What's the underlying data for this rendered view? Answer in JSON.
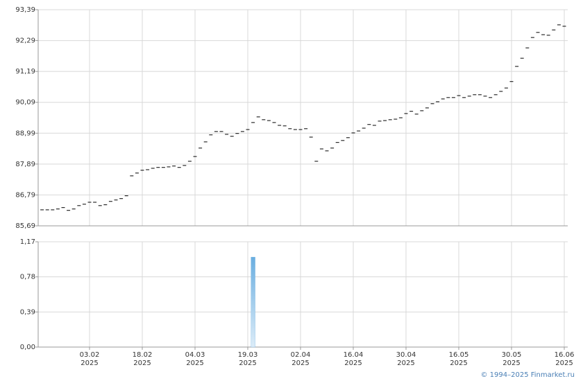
{
  "chart_data": [
    {
      "type": "dash",
      "color": "#000000",
      "grid": true,
      "ylim": [
        85.69,
        93.39
      ],
      "yticks": [
        {
          "value": 93.39,
          "label": "93,39"
        },
        {
          "value": 92.29,
          "label": "92,29"
        },
        {
          "value": 91.19,
          "label": "91,19"
        },
        {
          "value": 90.09,
          "label": "90,09"
        },
        {
          "value": 88.99,
          "label": "88,99"
        },
        {
          "value": 87.89,
          "label": "87,89"
        },
        {
          "value": 86.79,
          "label": "86,79"
        },
        {
          "value": 85.69,
          "label": "85,69"
        }
      ],
      "values": [
        86.26,
        86.26,
        86.26,
        86.29,
        86.34,
        86.24,
        86.29,
        86.41,
        86.46,
        86.53,
        86.53,
        86.41,
        86.44,
        86.56,
        86.61,
        86.66,
        86.76,
        87.47,
        87.57,
        87.67,
        87.69,
        87.74,
        87.77,
        87.77,
        87.79,
        87.82,
        87.77,
        87.84,
        87.99,
        88.16,
        88.46,
        88.68,
        88.93,
        89.05,
        89.05,
        88.95,
        88.88,
        88.98,
        89.05,
        89.12,
        89.37,
        89.57,
        89.47,
        89.44,
        89.37,
        89.27,
        89.25,
        89.15,
        89.12,
        89.12,
        89.15,
        88.85,
        87.99,
        88.43,
        88.36,
        88.46,
        88.66,
        88.73,
        88.83,
        89.0,
        89.07,
        89.17,
        89.3,
        89.27,
        89.42,
        89.44,
        89.47,
        89.49,
        89.54,
        89.69,
        89.77,
        89.67,
        89.79,
        89.89,
        90.04,
        90.11,
        90.21,
        90.26,
        90.26,
        90.33,
        90.26,
        90.31,
        90.36,
        90.36,
        90.31,
        90.26,
        90.36,
        90.48,
        90.6,
        90.83,
        91.37,
        91.66,
        92.03,
        92.4,
        92.58,
        92.5,
        92.48,
        92.67,
        92.85,
        92.8
      ]
    },
    {
      "type": "bar",
      "color": "#6aaee0",
      "grid": true,
      "ylim": [
        0,
        1.17
      ],
      "yticks": [
        {
          "value": 1.17,
          "label": "1,17"
        },
        {
          "value": 0.78,
          "label": "0,78"
        },
        {
          "value": 0.39,
          "label": "0,39"
        },
        {
          "value": 0,
          "label": "0,00"
        }
      ],
      "categories": [
        null,
        null,
        null,
        null,
        null,
        null,
        null,
        null,
        null,
        "03.02\n2025",
        null,
        null,
        null,
        null,
        null,
        null,
        null,
        null,
        null,
        "18.02\n2025",
        null,
        null,
        null,
        null,
        null,
        null,
        null,
        null,
        null,
        "04.03\n2025",
        null,
        null,
        null,
        null,
        null,
        null,
        null,
        null,
        null,
        "19.03\n2025",
        null,
        null,
        null,
        null,
        null,
        null,
        null,
        null,
        null,
        "02.04\n2025",
        null,
        null,
        null,
        null,
        null,
        null,
        null,
        null,
        null,
        "16.04\n2025",
        null,
        null,
        null,
        null,
        null,
        null,
        null,
        null,
        null,
        "30.04\n2025",
        null,
        null,
        null,
        null,
        null,
        null,
        null,
        null,
        null,
        "16.05\n2025",
        null,
        null,
        null,
        null,
        null,
        null,
        null,
        null,
        null,
        "30.05\n2025",
        null,
        null,
        null,
        null,
        null,
        null,
        null,
        null,
        null,
        "16.06\n2025"
      ],
      "values": [
        null,
        null,
        null,
        null,
        null,
        null,
        null,
        null,
        null,
        null,
        null,
        null,
        null,
        null,
        null,
        null,
        null,
        null,
        null,
        null,
        null,
        null,
        null,
        null,
        null,
        null,
        null,
        null,
        null,
        null,
        null,
        null,
        null,
        null,
        null,
        null,
        null,
        null,
        null,
        null,
        1.0,
        null,
        null,
        null,
        null,
        null,
        null,
        null,
        null,
        null,
        null,
        null,
        null,
        null,
        null,
        null,
        null,
        null,
        null,
        null,
        null,
        null,
        null,
        null,
        null,
        null,
        null,
        null,
        null,
        null,
        null,
        null,
        null,
        null,
        null,
        null,
        null,
        null,
        null,
        null,
        null,
        null,
        null,
        null,
        null,
        null,
        null,
        null,
        null,
        null,
        null,
        null,
        null,
        null,
        null,
        null,
        null,
        null,
        null,
        null
      ]
    }
  ],
  "credit": "© 1994–2025 Finmarket.ru"
}
